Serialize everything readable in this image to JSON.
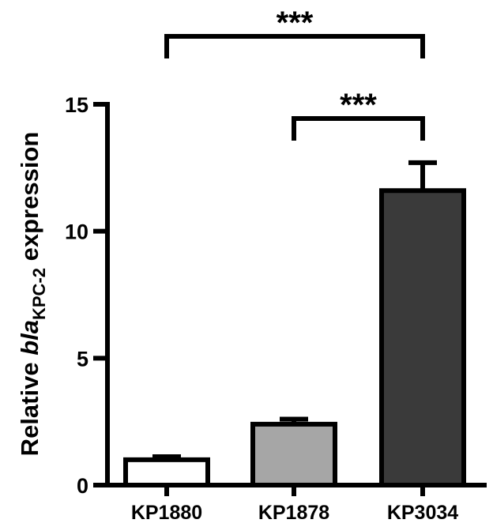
{
  "chart_data": {
    "type": "bar",
    "categories": [
      "KP1880",
      "KP1878",
      "KP3034"
    ],
    "values": [
      1.0,
      2.4,
      11.6
    ],
    "errors": [
      0.12,
      0.2,
      1.1
    ],
    "bar_colors": [
      "#ffffff",
      "#a6a6a6",
      "#3a3a3a"
    ],
    "ylabel": {
      "prefix": "Relative ",
      "italic": "bla",
      "subscript": "KPC-2",
      "suffix": " expression"
    },
    "ylim": [
      0,
      15
    ],
    "yticks": [
      0,
      5,
      10,
      15
    ],
    "grid": false,
    "significance": [
      {
        "from": 0,
        "to": 2,
        "label": "***"
      },
      {
        "from": 1,
        "to": 2,
        "label": "***"
      }
    ]
  }
}
